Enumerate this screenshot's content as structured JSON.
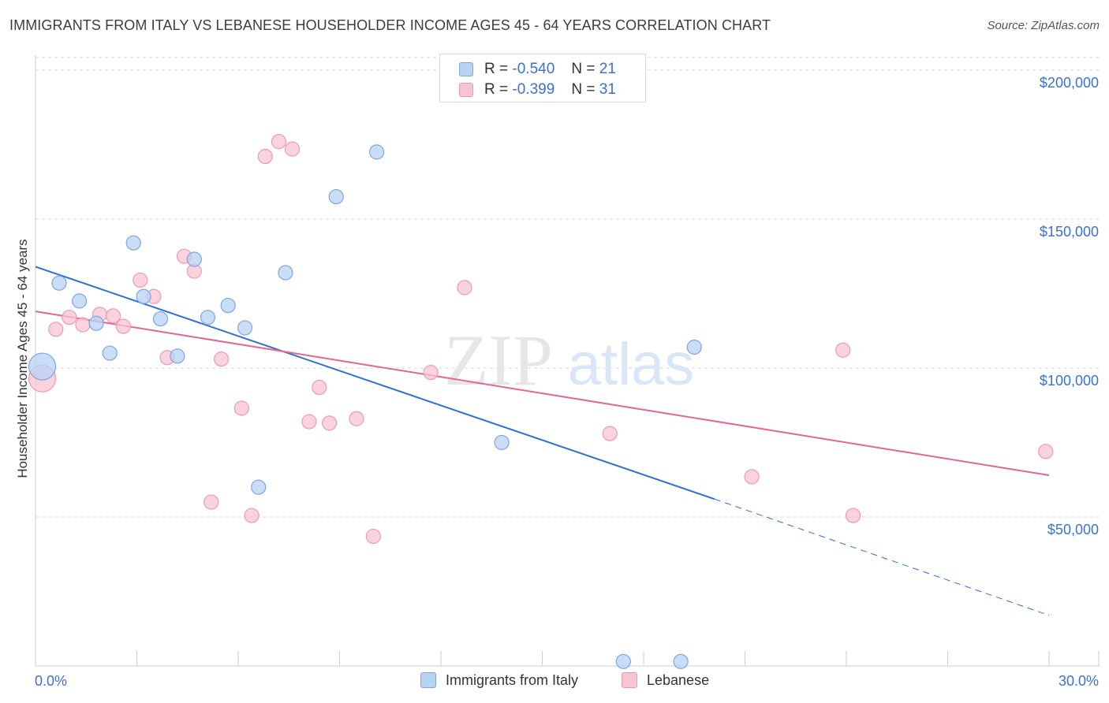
{
  "title": "IMMIGRANTS FROM ITALY VS LEBANESE HOUSEHOLDER INCOME AGES 45 - 64 YEARS CORRELATION CHART",
  "source": "Source: ZipAtlas.com",
  "colors": {
    "italy_fill": "#b8d2f4",
    "italy_stroke": "#7ea6dc",
    "italy_line": "#2f6fd4",
    "lebanese_fill": "#f8c4d4",
    "lebanese_stroke": "#ec9ab4",
    "lebanese_line": "#e2678f",
    "axis_text": "#3b72c9",
    "grid": "#d6d6d6"
  },
  "stats_legend": {
    "italy": {
      "r_label": "R =",
      "r_value": "-0.540",
      "n_label": "N =",
      "n_value": "21"
    },
    "lebanese": {
      "r_label": "R =",
      "r_value": "-0.399",
      "n_label": "N =",
      "n_value": "31"
    }
  },
  "bottom_legend": {
    "italy": "Immigrants from Italy",
    "lebanese": "Lebanese"
  },
  "watermark": {
    "zip": "ZIP",
    "atlas": "atlas"
  },
  "chart_data": {
    "type": "scatter",
    "title": "IMMIGRANTS FROM ITALY VS LEBANESE HOUSEHOLDER INCOME AGES 45 - 64 YEARS CORRELATION CHART",
    "xlabel": "",
    "ylabel": "Householder Income Ages 45 - 64 years",
    "xlim": [
      0,
      30
    ],
    "ylim": [
      0,
      205000
    ],
    "x_tick_labels": [
      "0.0%",
      "30.0%"
    ],
    "y_ticks": [
      50000,
      100000,
      150000,
      200000
    ],
    "y_tick_labels": [
      "$50,000",
      "$100,000",
      "$150,000",
      "$200,000"
    ],
    "grid": true,
    "series": [
      {
        "name": "Immigrants from Italy",
        "points": [
          {
            "x": 0.2,
            "y": 100500,
            "big": true
          },
          {
            "x": 0.7,
            "y": 128500
          },
          {
            "x": 1.3,
            "y": 122500
          },
          {
            "x": 1.8,
            "y": 115000
          },
          {
            "x": 2.2,
            "y": 105000
          },
          {
            "x": 2.9,
            "y": 142000
          },
          {
            "x": 3.2,
            "y": 124000
          },
          {
            "x": 3.7,
            "y": 116500
          },
          {
            "x": 4.2,
            "y": 104000
          },
          {
            "x": 4.7,
            "y": 136500
          },
          {
            "x": 5.1,
            "y": 117000
          },
          {
            "x": 5.7,
            "y": 121000
          },
          {
            "x": 6.2,
            "y": 113500
          },
          {
            "x": 6.6,
            "y": 60000
          },
          {
            "x": 7.4,
            "y": 132000
          },
          {
            "x": 8.9,
            "y": 157500
          },
          {
            "x": 10.1,
            "y": 172500
          },
          {
            "x": 13.8,
            "y": 75000
          },
          {
            "x": 19.5,
            "y": 107000
          },
          {
            "x": 17.4,
            "y": 1500
          },
          {
            "x": 19.1,
            "y": 1500
          }
        ],
        "trend": {
          "x0": 0,
          "y0": 134000,
          "x1": 20.1,
          "y1": 56000,
          "dash_x1": 30,
          "dash_y1": 17000
        }
      },
      {
        "name": "Lebanese",
        "points": [
          {
            "x": 0.2,
            "y": 96500,
            "big": true
          },
          {
            "x": 0.6,
            "y": 113000
          },
          {
            "x": 1.0,
            "y": 117000
          },
          {
            "x": 1.4,
            "y": 114500
          },
          {
            "x": 1.9,
            "y": 118000
          },
          {
            "x": 2.3,
            "y": 117500
          },
          {
            "x": 2.6,
            "y": 114000
          },
          {
            "x": 3.1,
            "y": 129500
          },
          {
            "x": 3.5,
            "y": 124000
          },
          {
            "x": 3.9,
            "y": 103500
          },
          {
            "x": 4.4,
            "y": 137500
          },
          {
            "x": 4.7,
            "y": 132500
          },
          {
            "x": 5.2,
            "y": 55000
          },
          {
            "x": 5.5,
            "y": 103000
          },
          {
            "x": 6.1,
            "y": 86500
          },
          {
            "x": 6.4,
            "y": 50500
          },
          {
            "x": 6.8,
            "y": 171000
          },
          {
            "x": 7.2,
            "y": 176000
          },
          {
            "x": 7.6,
            "y": 173500
          },
          {
            "x": 8.1,
            "y": 82000
          },
          {
            "x": 8.4,
            "y": 93500
          },
          {
            "x": 8.7,
            "y": 81500
          },
          {
            "x": 9.5,
            "y": 83000
          },
          {
            "x": 10.0,
            "y": 43500
          },
          {
            "x": 11.7,
            "y": 98500
          },
          {
            "x": 12.7,
            "y": 127000
          },
          {
            "x": 17.0,
            "y": 78000
          },
          {
            "x": 21.2,
            "y": 63500
          },
          {
            "x": 23.9,
            "y": 106000
          },
          {
            "x": 24.2,
            "y": 50500
          },
          {
            "x": 29.9,
            "y": 72000
          }
        ],
        "trend": {
          "x0": 0,
          "y0": 119000,
          "x1": 30,
          "y1": 64000
        }
      }
    ]
  }
}
